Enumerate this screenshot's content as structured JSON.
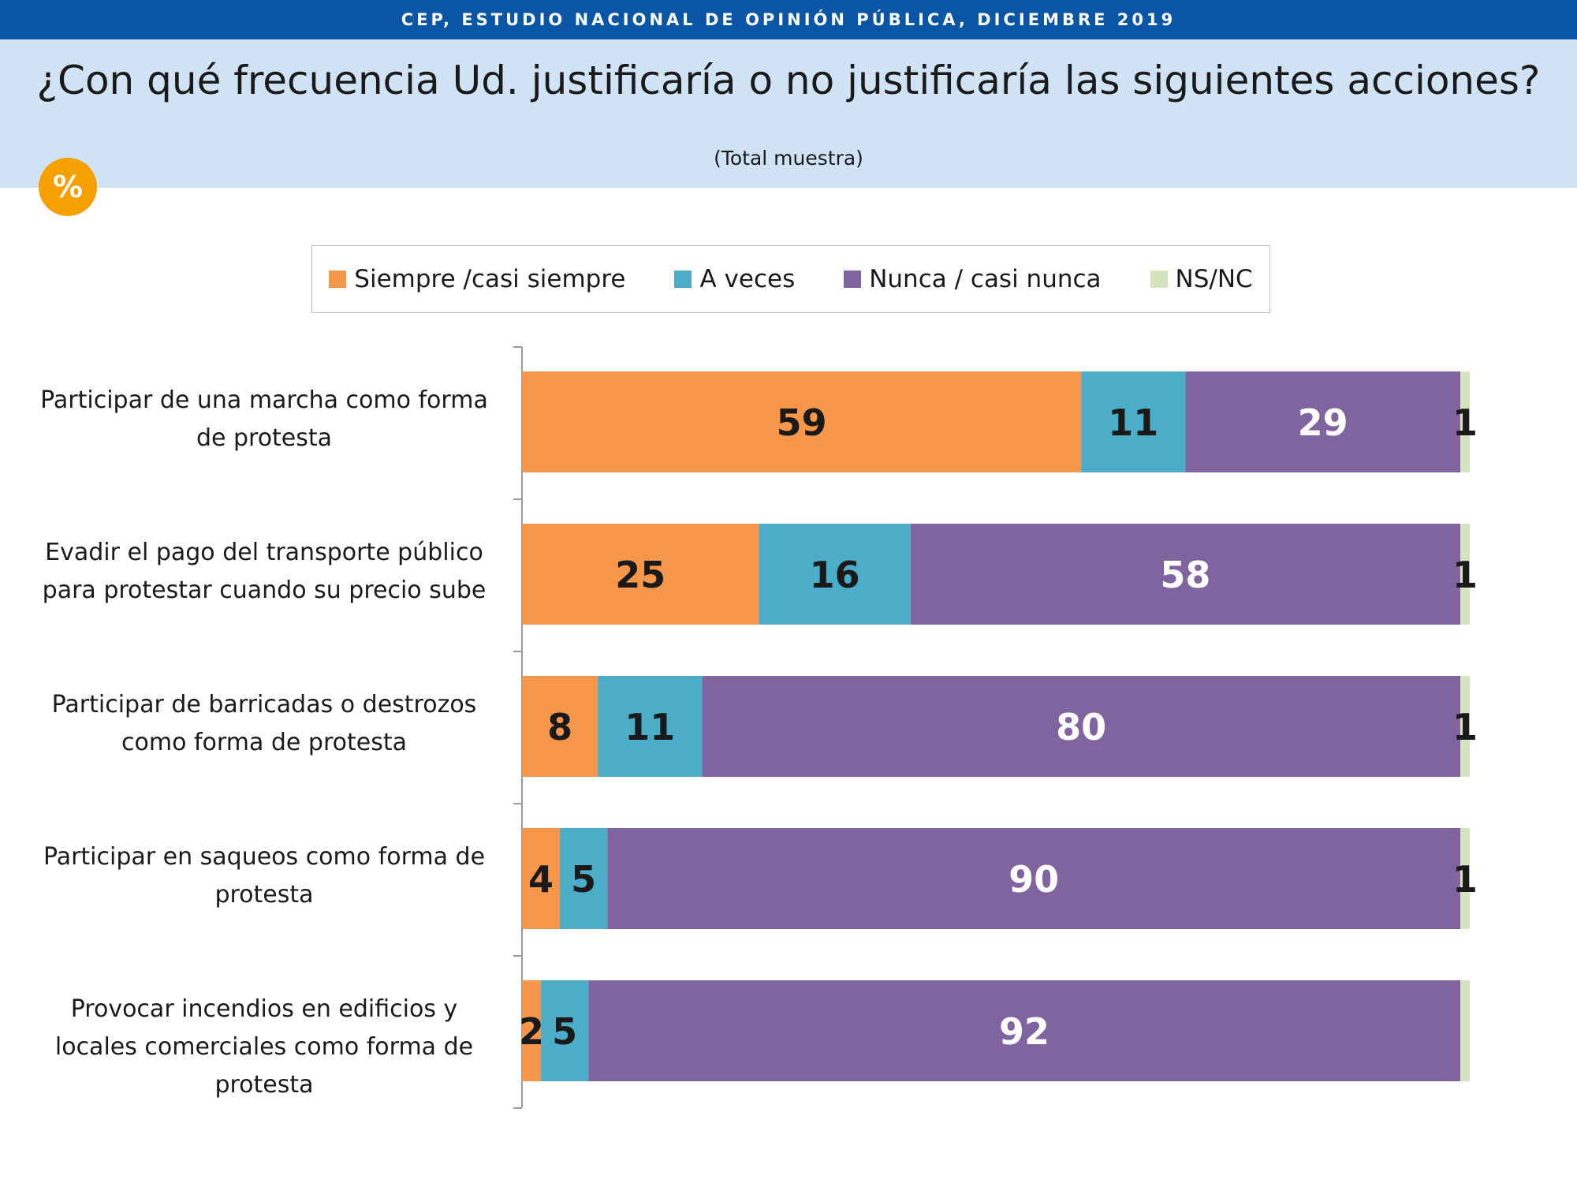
{
  "header": {
    "source": "CEP, ESTUDIO NACIONAL DE OPINIÓN PÚBLICA, DICIEMBRE 2019",
    "title": "¿Con qué frecuencia Ud. justificaría o no justificaría las siguientes acciones?",
    "subtitle": "(Total muestra)",
    "badge": "%"
  },
  "colors": {
    "header_bg": "#0b56a4",
    "title_band": "#cfe3f5",
    "badge": "#f6a000"
  },
  "chart_data": {
    "type": "bar",
    "orientation": "horizontal",
    "stacked": true,
    "title": "¿Con qué frecuencia Ud. justificaría o no justificaría las siguientes acciones?",
    "subtitle": "(Total muestra)",
    "xlim": [
      0,
      100
    ],
    "grid": false,
    "legend_position": "top",
    "categories": [
      "Participar de una marcha como forma de protesta",
      "Evadir el pago del transporte público para protestar cuando su precio sube",
      "Participar de barricadas o destrozos como forma de protesta",
      "Participar en saqueos como forma de protesta",
      "Provocar incendios en edificios y locales comerciales como forma de protesta"
    ],
    "series": [
      {
        "name": "Siempre /casi siempre",
        "color": "#f5964a",
        "label_color": "#1a1a1a",
        "values": [
          59,
          25,
          8,
          4,
          2
        ]
      },
      {
        "name": "A veces",
        "color": "#4badc8",
        "label_color": "#1a1a1a",
        "values": [
          11,
          16,
          11,
          5,
          5
        ]
      },
      {
        "name": "Nunca / casi nunca",
        "color": "#8064a0",
        "label_color": "#ffffff",
        "values": [
          29,
          58,
          80,
          90,
          92
        ]
      },
      {
        "name": "NS/NC",
        "color": "#d6e3bf",
        "label_color": "#1a1a1a",
        "values": [
          1,
          1,
          1,
          1,
          1
        ]
      }
    ],
    "data_labels": [
      [
        "59",
        "25",
        "8",
        "4",
        "2"
      ],
      [
        "11",
        "16",
        "11",
        "5",
        "5"
      ],
      [
        "29",
        "58",
        "80",
        "90",
        "92"
      ],
      [
        "1",
        "1",
        "1",
        "1",
        ""
      ]
    ]
  }
}
